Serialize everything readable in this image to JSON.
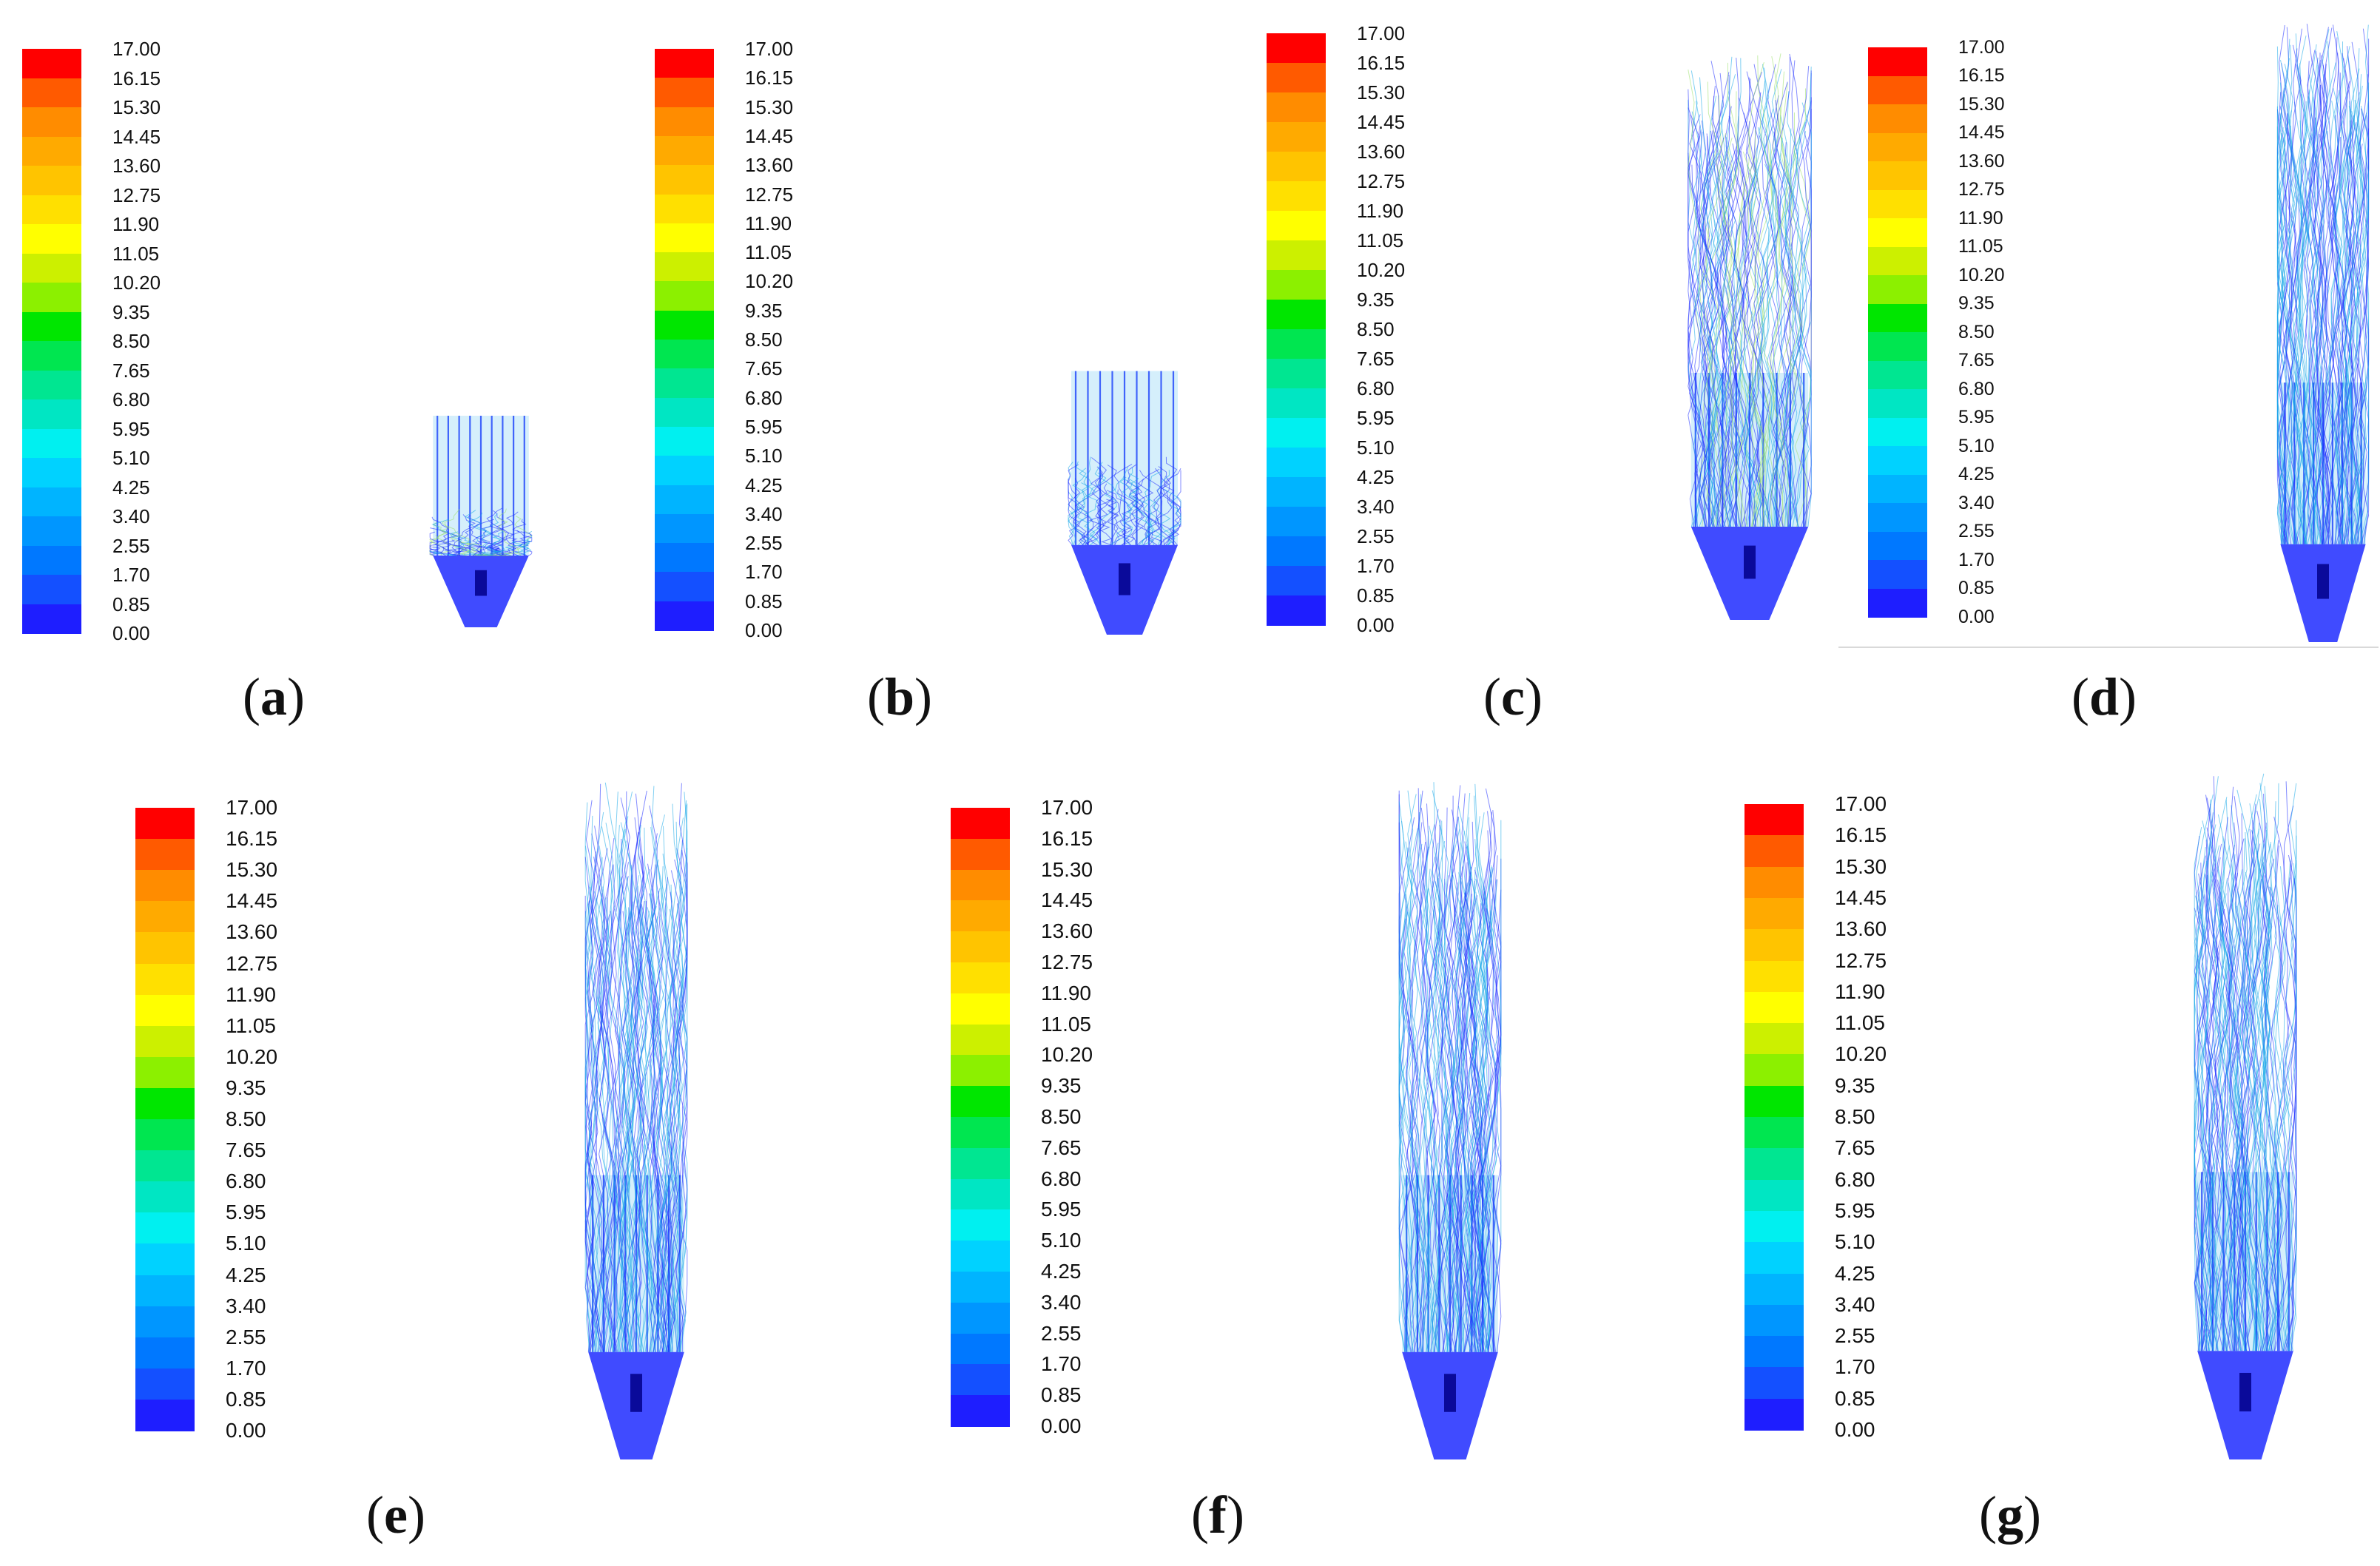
{
  "figure": {
    "legend_ticks": [
      "17.00",
      "16.15",
      "15.30",
      "14.45",
      "13.60",
      "12.75",
      "11.90",
      "11.05",
      "10.20",
      "9.35",
      "8.50",
      "7.65",
      "6.80",
      "5.95",
      "5.10",
      "4.25",
      "3.40",
      "2.55",
      "1.70",
      "0.85",
      "0.00"
    ],
    "colors": {
      "band": [
        "#ff0000",
        "#ff5a00",
        "#ff8c00",
        "#ffaa00",
        "#ffc400",
        "#ffe000",
        "#ffff00",
        "#ccf000",
        "#8cf000",
        "#00e600",
        "#00e650",
        "#00e691",
        "#00e6c3",
        "#00f0f0",
        "#00d2ff",
        "#00b4ff",
        "#0096ff",
        "#0078ff",
        "#1450ff",
        "#1e1eff"
      ],
      "flow_low": "#1e2cff",
      "flow_mid": "#18a8e8",
      "flow_high": "#9be06a"
    },
    "panels": [
      {
        "id": "a",
        "label": "a"
      },
      {
        "id": "b",
        "label": "b"
      },
      {
        "id": "c",
        "label": "c"
      },
      {
        "id": "d",
        "label": "d"
      },
      {
        "id": "e",
        "label": "e"
      },
      {
        "id": "f",
        "label": "f"
      },
      {
        "id": "g",
        "label": "g"
      }
    ]
  }
}
